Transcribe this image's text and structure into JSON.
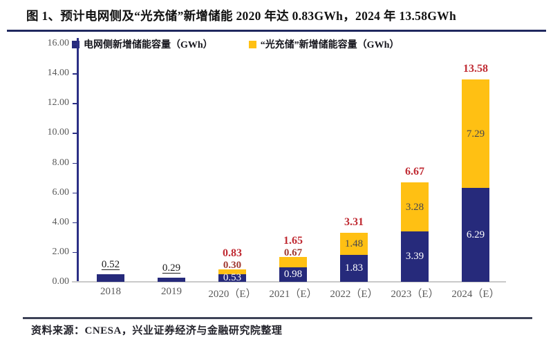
{
  "figure": {
    "title": "图 1、预计电网侧及“光充储”新增储能 2020 年达 0.83GWh，2024 年 13.58GWh",
    "source": "资料来源：CNESA，兴业证券经济与金融研究院整理"
  },
  "colors": {
    "grid_series": "#262a7b",
    "pv_series": "#ffc013",
    "total_label_red": "#c02b33",
    "small_value_label": "#a03830",
    "inside_orange_label": "#46464e",
    "axis_line": "#2b2f85",
    "axis_text": "#595959",
    "baseline": "#c9c9c9",
    "title_rule": "#20285f",
    "source_rule": "#3d4257"
  },
  "chart_data": {
    "type": "bar",
    "stacked": true,
    "title": "预计电网侧及“光充储”新增储能 2020 年达 0.83GWh，2024 年 13.58GWh",
    "categories": [
      "2018",
      "2019",
      "2020（E）",
      "2021（E）",
      "2022（E）",
      "2023（E）",
      "2024（E）"
    ],
    "series": [
      {
        "name": "电网侧新增储能容量（GWh）",
        "color": "#262a7b",
        "values": [
          0.52,
          0.29,
          0.53,
          0.98,
          1.83,
          3.39,
          6.29
        ],
        "labels": [
          "0.52",
          "0.29",
          "0.53",
          "0.98",
          "1.83",
          "3.39",
          "6.29"
        ]
      },
      {
        "name": "“光充储”新增储能容量（GWh）",
        "color": "#ffc013",
        "values": [
          0,
          0,
          0.3,
          0.67,
          1.48,
          3.28,
          7.29
        ],
        "labels": [
          "",
          "",
          "0.30",
          "0.67",
          "1.48",
          "3.28",
          "7.29"
        ]
      }
    ],
    "totals": [
      "0.52",
      "0.29",
      "0.83",
      "1.65",
      "3.31",
      "6.67",
      "13.58"
    ],
    "ylim": [
      0,
      16
    ],
    "ytick_step": 2,
    "yticks": [
      "0.00",
      "2.00",
      "4.00",
      "6.00",
      "8.00",
      "10.00",
      "12.00",
      "14.00",
      "16.00"
    ],
    "legend_position": "top-left-inside",
    "grid": false,
    "xlabel": "",
    "ylabel": ""
  }
}
